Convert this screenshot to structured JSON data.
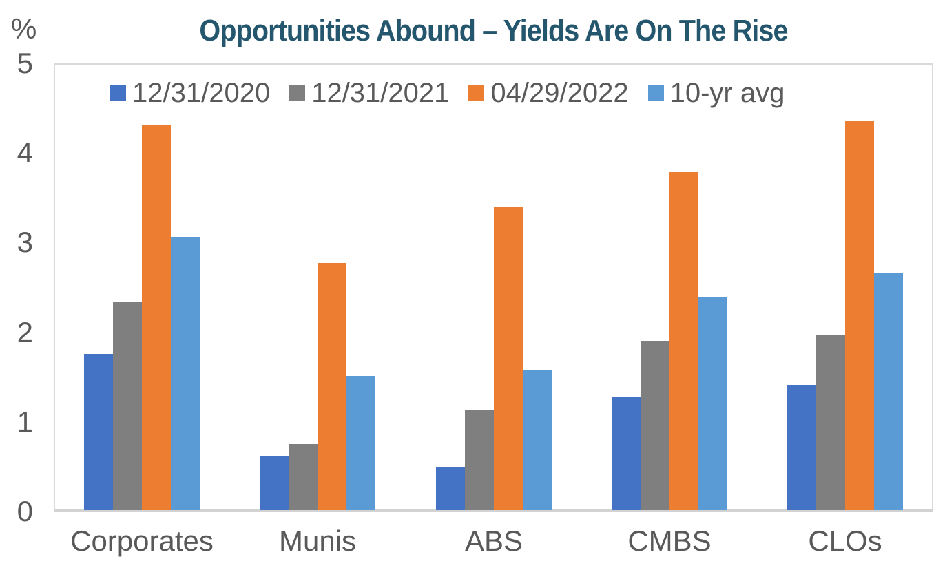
{
  "axis": {
    "unit_label": "%",
    "ytick_labels": [
      "0",
      "1",
      "2",
      "3",
      "4",
      "5"
    ]
  },
  "header": {
    "title": "Opportunities Abound – Yields Are On The Rise"
  },
  "colors": {
    "title_text": "#24566E",
    "axis_text": "#595959",
    "plot_border": "#D9D9D9",
    "series_2020": "#4472C4",
    "series_2021": "#7F7F7F",
    "series_2022": "#ED7D31",
    "series_10yr": "#5B9BD5"
  },
  "chart_data": {
    "type": "bar",
    "title": "Opportunities Abound – Yields Are On The Rise",
    "xlabel": "",
    "ylabel": "%",
    "ylim": [
      0,
      5
    ],
    "yticks": [
      0,
      1,
      2,
      3,
      4,
      5
    ],
    "grid": false,
    "legend_position": "top-center-inside",
    "categories": [
      "Corporates",
      "Munis",
      "ABS",
      "CMBS",
      "CLOs"
    ],
    "series": [
      {
        "name": "12/31/2020",
        "color": "#4472C4",
        "values": [
          1.74,
          0.61,
          0.48,
          1.27,
          1.4
        ]
      },
      {
        "name": "12/31/2021",
        "color": "#7F7F7F",
        "values": [
          2.33,
          0.74,
          1.12,
          1.88,
          1.96
        ]
      },
      {
        "name": "04/29/2022",
        "color": "#ED7D31",
        "values": [
          4.3,
          2.76,
          3.39,
          3.77,
          4.34
        ]
      },
      {
        "name": "10-yr avg",
        "color": "#5B9BD5",
        "values": [
          3.05,
          1.5,
          1.57,
          2.37,
          2.64
        ]
      }
    ]
  }
}
